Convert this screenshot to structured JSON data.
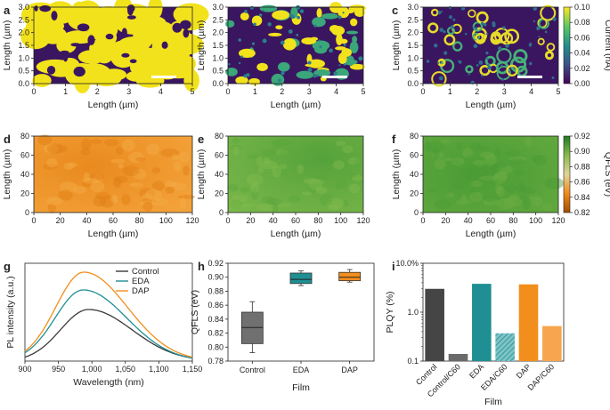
{
  "panels": {
    "a": "a",
    "b": "b",
    "c": "c",
    "d": "d",
    "e": "e",
    "f": "f",
    "g": "g",
    "h": "h",
    "i": "i"
  },
  "chart_data": [
    {
      "id": "a",
      "type": "heatmap",
      "title": "",
      "xlabel": "Length (µm)",
      "ylabel": "Length (µm)",
      "xlim": [
        0,
        5
      ],
      "ylim": [
        0,
        3
      ],
      "xticks": [
        "0",
        "1",
        "2",
        "3",
        "4",
        "5"
      ],
      "yticks": [
        "0.0",
        "0.5",
        "1.0",
        "1.5",
        "2.0",
        "2.5",
        "3.0"
      ],
      "map": "current",
      "pattern": "large connected high-current domains"
    },
    {
      "id": "b",
      "type": "heatmap",
      "title": "",
      "xlabel": "Length (µm)",
      "ylabel": "Length (µm)",
      "xlim": [
        0,
        5
      ],
      "ylim": [
        0,
        3
      ],
      "xticks": [
        "0",
        "1",
        "2",
        "3",
        "4",
        "5"
      ],
      "yticks": [
        "0.0",
        "0.5",
        "1.0",
        "1.5",
        "2.0",
        "2.5",
        "3.0"
      ],
      "map": "current",
      "pattern": "scattered high-current islands"
    },
    {
      "id": "c",
      "type": "heatmap",
      "title": "",
      "xlabel": "Length (µm)",
      "ylabel": "Length (µm)",
      "xlim": [
        0,
        5
      ],
      "ylim": [
        0,
        3
      ],
      "xticks": [
        "0",
        "1",
        "2",
        "3",
        "4",
        "5"
      ],
      "yticks": [
        "0.0",
        "0.5",
        "1.0",
        "1.5",
        "2.0",
        "2.5",
        "3.0"
      ],
      "map": "current",
      "pattern": "ring-shaped grain boundaries"
    },
    {
      "id": "current_colorbar",
      "type": "colorbar",
      "label": "Current (nA)",
      "range": [
        0,
        0.1
      ],
      "ticks": [
        "0.00",
        "0.02",
        "0.04",
        "0.06",
        "0.08",
        "0.10"
      ]
    },
    {
      "id": "d",
      "type": "heatmap",
      "xlabel": "Length (µm)",
      "ylabel": "Length (µm)",
      "xlim": [
        0,
        130
      ],
      "ylim": [
        0,
        80
      ],
      "xticks": [
        "0",
        "20",
        "40",
        "60",
        "80",
        "100",
        "120"
      ],
      "yticks": [
        "0",
        "20",
        "40",
        "60",
        "80"
      ],
      "map": "qfls",
      "mean_qfls_eV": 0.83
    },
    {
      "id": "e",
      "type": "heatmap",
      "xlabel": "Length (µm)",
      "ylabel": "Length (µm)",
      "xlim": [
        0,
        130
      ],
      "ylim": [
        0,
        80
      ],
      "xticks": [
        "0",
        "20",
        "40",
        "60",
        "80",
        "100",
        "120"
      ],
      "yticks": [
        "0",
        "20",
        "40",
        "60",
        "80"
      ],
      "map": "qfls",
      "mean_qfls_eV": 0.897
    },
    {
      "id": "f",
      "type": "heatmap",
      "xlabel": "Length (µm)",
      "ylabel": "Length (µm)",
      "xlim": [
        0,
        130
      ],
      "ylim": [
        0,
        80
      ],
      "xticks": [
        "0",
        "20",
        "40",
        "60",
        "80",
        "100",
        "120"
      ],
      "yticks": [
        "0",
        "20",
        "40",
        "60",
        "80"
      ],
      "map": "qfls",
      "mean_qfls_eV": 0.9
    },
    {
      "id": "qfls_colorbar",
      "type": "colorbar",
      "label": "QFLS (eV)",
      "range": [
        0.82,
        0.92
      ],
      "ticks": [
        "0.82",
        "0.84",
        "0.86",
        "0.88",
        "0.90",
        "0.92"
      ]
    },
    {
      "id": "g",
      "type": "line",
      "xlabel": "Wavelength (nm)",
      "ylabel": "PL intensity (a.u.)",
      "xlim": [
        900,
        1150
      ],
      "ylim": [
        0,
        1.1
      ],
      "xticks": [
        "900",
        "950",
        "1,000",
        "1,050",
        "1,100",
        "1,150"
      ],
      "curve_model": {
        "peak_nm": [
          995,
          987,
          988
        ],
        "sigma_left_nm": 42,
        "sigma_right_nm": 65
      },
      "series": [
        {
          "name": "Control",
          "color": "#3a3a3a",
          "peak": 0.58
        },
        {
          "name": "EDA",
          "color": "#1f8f93",
          "peak": 0.8
        },
        {
          "name": "DAP",
          "color": "#f28e1c",
          "peak": 1.0
        }
      ]
    },
    {
      "id": "h",
      "type": "box",
      "xlabel": "Film",
      "ylabel": "QFLS (eV)",
      "ylim": [
        0.78,
        0.92
      ],
      "yticks": [
        "0.78",
        "0.80",
        "0.82",
        "0.84",
        "0.86",
        "0.88",
        "0.90",
        "0.92"
      ],
      "categories": [
        "Control",
        "EDA",
        "DAP"
      ],
      "boxes": [
        {
          "name": "Control",
          "min": 0.792,
          "q1": 0.805,
          "median": 0.828,
          "q3": 0.85,
          "max": 0.865,
          "color": "#707070"
        },
        {
          "name": "EDA",
          "min": 0.888,
          "q1": 0.891,
          "median": 0.897,
          "q3": 0.906,
          "max": 0.909,
          "color": "#1f8f93"
        },
        {
          "name": "DAP",
          "min": 0.893,
          "q1": 0.895,
          "median": 0.9,
          "q3": 0.907,
          "max": 0.911,
          "color": "#f28e1c"
        }
      ]
    },
    {
      "id": "i",
      "type": "bar",
      "scale": "log",
      "xlabel": "Film",
      "ylabel": "PLQY (%)",
      "ylim": [
        0.1,
        10
      ],
      "yticks": [
        "0.1",
        "1.0",
        "10.0%"
      ],
      "categories": [
        "Control",
        "Control/C60",
        "EDA",
        "EDA/C60",
        "DAP",
        "DAP/C60"
      ],
      "values": [
        3.0,
        0.14,
        3.8,
        0.37,
        3.7,
        0.52
      ],
      "colors": [
        "#454545",
        "#6a6a6a",
        "#1f8f93",
        "#1f8f93",
        "#f28e1c",
        "#f7a64f"
      ],
      "hatched": [
        false,
        false,
        false,
        true,
        false,
        false
      ]
    }
  ]
}
